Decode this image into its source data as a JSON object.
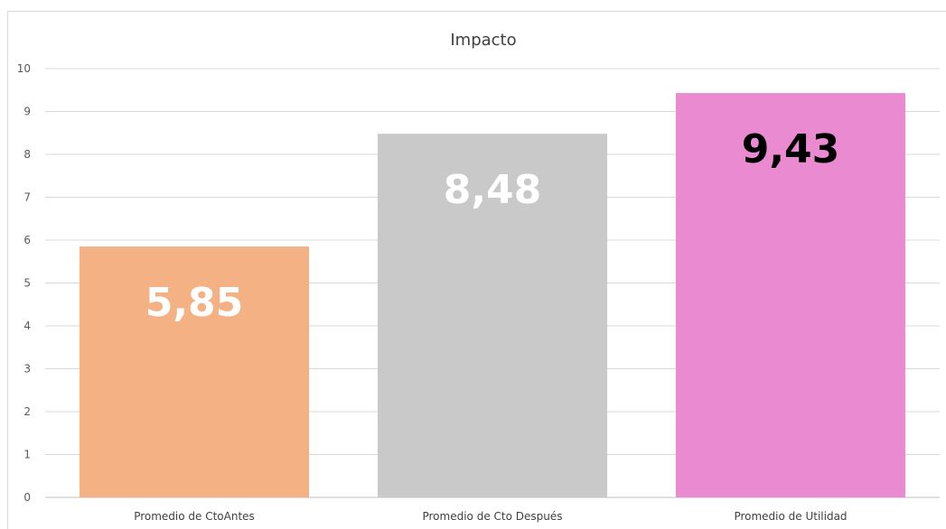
{
  "chart_data": {
    "type": "bar",
    "title": "Impacto",
    "xlabel": "",
    "ylabel": "",
    "categories": [
      "Promedio de CtoAntes",
      "Promedio de Cto Después",
      "Promedio de Utilidad"
    ],
    "values": [
      5.85,
      8.48,
      9.43
    ],
    "data_labels": [
      "5,85",
      "8,48",
      "9,43"
    ],
    "bar_colors": [
      "#f4b183",
      "#c9c9c9",
      "#ea8ad1"
    ],
    "label_colors": [
      "#ffffff",
      "#ffffff",
      "#000000"
    ],
    "ylim": [
      0,
      10
    ],
    "yticks": [
      0,
      1,
      2,
      3,
      4,
      5,
      6,
      7,
      8,
      9,
      10
    ],
    "grid": true,
    "legend": "none"
  }
}
